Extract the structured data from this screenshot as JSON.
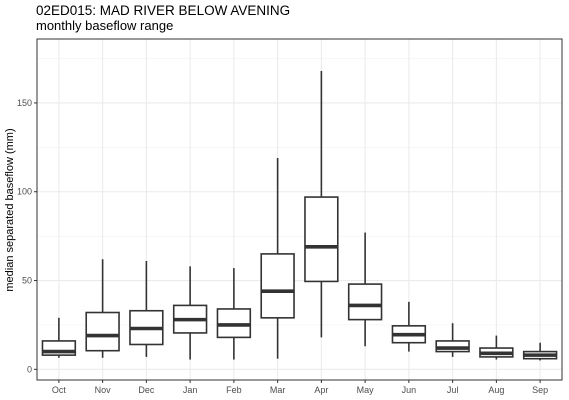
{
  "chart_data": {
    "type": "boxplot",
    "title": "02ED015: MAD RIVER BELOW AVENING",
    "subtitle": "monthly baseflow range",
    "xlabel": "",
    "ylabel": "median separated baseflow (mm)",
    "ylim": [
      -6,
      186
    ],
    "yticks": [
      0,
      50,
      100,
      150
    ],
    "grid": true,
    "categories": [
      "Oct",
      "Nov",
      "Dec",
      "Jan",
      "Feb",
      "Mar",
      "Apr",
      "May",
      "Jun",
      "Jul",
      "Aug",
      "Sep"
    ],
    "boxes": [
      {
        "category": "Oct",
        "min": 6.5,
        "q1": 8,
        "median": 10,
        "q3": 16,
        "max": 29
      },
      {
        "category": "Nov",
        "min": 6.5,
        "q1": 10.5,
        "median": 19,
        "q3": 32,
        "max": 62
      },
      {
        "category": "Dec",
        "min": 7,
        "q1": 14,
        "median": 23,
        "q3": 33,
        "max": 61
      },
      {
        "category": "Jan",
        "min": 5.5,
        "q1": 20.5,
        "median": 28,
        "q3": 36,
        "max": 58
      },
      {
        "category": "Feb",
        "min": 5.5,
        "q1": 18,
        "median": 25,
        "q3": 34,
        "max": 57
      },
      {
        "category": "Mar",
        "min": 6,
        "q1": 29,
        "median": 44,
        "q3": 65,
        "max": 119
      },
      {
        "category": "Apr",
        "min": 18,
        "q1": 49.5,
        "median": 69,
        "q3": 97,
        "max": 168
      },
      {
        "category": "May",
        "min": 13,
        "q1": 28,
        "median": 36,
        "q3": 48,
        "max": 77
      },
      {
        "category": "Jun",
        "min": 10,
        "q1": 15,
        "median": 19.5,
        "q3": 24.5,
        "max": 38
      },
      {
        "category": "Jul",
        "min": 7,
        "q1": 10,
        "median": 12,
        "q3": 16,
        "max": 26
      },
      {
        "category": "Aug",
        "min": 5.5,
        "q1": 7,
        "median": 9,
        "q3": 12,
        "max": 19
      },
      {
        "category": "Sep",
        "min": 5,
        "q1": 6,
        "median": 8,
        "q3": 10,
        "max": 15
      }
    ]
  }
}
